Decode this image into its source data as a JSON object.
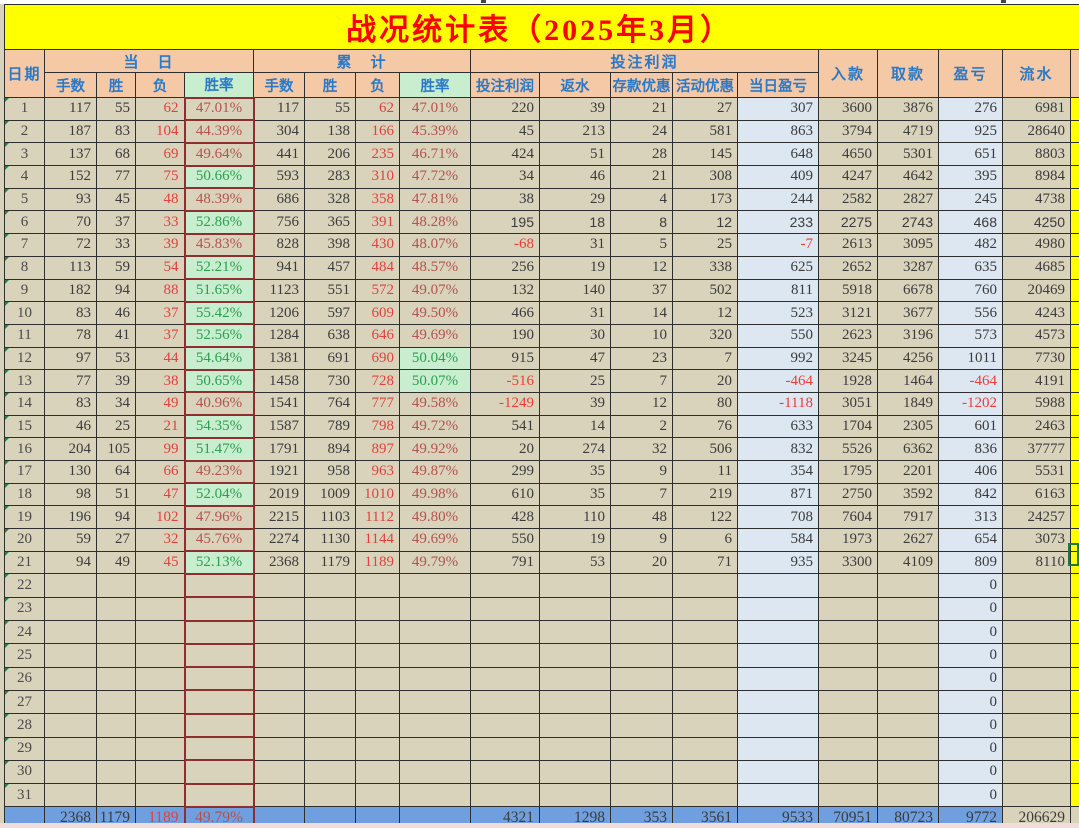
{
  "title": "战况统计表（2025年3月）",
  "colors": {
    "title_bg": "#FFFF00",
    "title_text": "#FF0000",
    "header_bg": "#F6C9A6",
    "header_text": "#2A79C9",
    "rate_header_bg": "#C8EECF",
    "cell_bg": "#D9D3BC",
    "blue_col_bg": "#DCE7F2",
    "good_bg": "#C8EECF",
    "good_text": "#2D9E4F",
    "bad_text": "#B2534E",
    "loss_text": "#E2413D",
    "neg_text": "#EF3B35",
    "num_text": "#3B3B3B",
    "total_bg": "#6F9FDF",
    "side_strip_bg": "#FFFF00",
    "bottom_strip_bg": "#F2DCDB",
    "grid_line": "#2E2E2E",
    "rate_border": "#8E2F2F",
    "triangle": "#1E8C3A",
    "selection": "#1A7A3C"
  },
  "header": {
    "date": "日期",
    "groups": [
      "当　日",
      "累　计",
      "投注利润"
    ],
    "sub": [
      "手数",
      "胜",
      "负",
      "胜率",
      "手数",
      "胜",
      "负",
      "胜率",
      "投注利润",
      "返水",
      "存款优惠",
      "活动优惠",
      "当日盈亏"
    ],
    "singles": [
      "入款",
      "取款",
      "盈亏",
      "流水"
    ]
  },
  "rows": [
    {
      "day": "1",
      "c": [
        "117",
        "55",
        "62",
        "47.01%",
        "117",
        "55",
        "62",
        "47.01%",
        "220",
        "39",
        "21",
        "27",
        "307",
        "3600",
        "3876",
        "276",
        "6981"
      ]
    },
    {
      "day": "2",
      "c": [
        "187",
        "83",
        "104",
        "44.39%",
        "304",
        "138",
        "166",
        "45.39%",
        "45",
        "213",
        "24",
        "581",
        "863",
        "3794",
        "4719",
        "925",
        "28640"
      ]
    },
    {
      "day": "3",
      "c": [
        "137",
        "68",
        "69",
        "49.64%",
        "441",
        "206",
        "235",
        "46.71%",
        "424",
        "51",
        "28",
        "145",
        "648",
        "4650",
        "5301",
        "651",
        "8803"
      ]
    },
    {
      "day": "4",
      "c": [
        "152",
        "77",
        "75",
        "50.66%",
        "593",
        "283",
        "310",
        "47.72%",
        "34",
        "46",
        "21",
        "308",
        "409",
        "4247",
        "4642",
        "395",
        "8984"
      ]
    },
    {
      "day": "5",
      "c": [
        "93",
        "45",
        "48",
        "48.39%",
        "686",
        "328",
        "358",
        "47.81%",
        "38",
        "29",
        "4",
        "173",
        "244",
        "2582",
        "2827",
        "245",
        "4738"
      ]
    },
    {
      "day": "6",
      "plain_font": true,
      "c": [
        "70",
        "37",
        "33",
        "52.86%",
        "756",
        "365",
        "391",
        "48.28%",
        "195",
        "18",
        "8",
        "12",
        "233",
        "2275",
        "2743",
        "468",
        "4250"
      ]
    },
    {
      "day": "7",
      "c": [
        "72",
        "33",
        "39",
        "45.83%",
        "828",
        "398",
        "430",
        "48.07%",
        "-68",
        "31",
        "5",
        "25",
        "-7",
        "2613",
        "3095",
        "482",
        "4980"
      ]
    },
    {
      "day": "8",
      "c": [
        "113",
        "59",
        "54",
        "52.21%",
        "941",
        "457",
        "484",
        "48.57%",
        "256",
        "19",
        "12",
        "338",
        "625",
        "2652",
        "3287",
        "635",
        "4685"
      ]
    },
    {
      "day": "9",
      "c": [
        "182",
        "94",
        "88",
        "51.65%",
        "1123",
        "551",
        "572",
        "49.07%",
        "132",
        "140",
        "37",
        "502",
        "811",
        "5918",
        "6678",
        "760",
        "20469"
      ]
    },
    {
      "day": "10",
      "c": [
        "83",
        "46",
        "37",
        "55.42%",
        "1206",
        "597",
        "609",
        "49.50%",
        "466",
        "31",
        "14",
        "12",
        "523",
        "3121",
        "3677",
        "556",
        "4243"
      ]
    },
    {
      "day": "11",
      "c": [
        "78",
        "41",
        "37",
        "52.56%",
        "1284",
        "638",
        "646",
        "49.69%",
        "190",
        "30",
        "10",
        "320",
        "550",
        "2623",
        "3196",
        "573",
        "4573"
      ]
    },
    {
      "day": "12",
      "c": [
        "97",
        "53",
        "44",
        "54.64%",
        "1381",
        "691",
        "690",
        "50.04%",
        "915",
        "47",
        "23",
        "7",
        "992",
        "3245",
        "4256",
        "1011",
        "7730"
      ]
    },
    {
      "day": "13",
      "c": [
        "77",
        "39",
        "38",
        "50.65%",
        "1458",
        "730",
        "728",
        "50.07%",
        "-516",
        "25",
        "7",
        "20",
        "-464",
        "1928",
        "1464",
        "-464",
        "4191"
      ]
    },
    {
      "day": "14",
      "c": [
        "83",
        "34",
        "49",
        "40.96%",
        "1541",
        "764",
        "777",
        "49.58%",
        "-1249",
        "39",
        "12",
        "80",
        "-1118",
        "3051",
        "1849",
        "-1202",
        "5988"
      ]
    },
    {
      "day": "15",
      "c": [
        "46",
        "25",
        "21",
        "54.35%",
        "1587",
        "789",
        "798",
        "49.72%",
        "541",
        "14",
        "2",
        "76",
        "633",
        "1704",
        "2305",
        "601",
        "2463"
      ]
    },
    {
      "day": "16",
      "c": [
        "204",
        "105",
        "99",
        "51.47%",
        "1791",
        "894",
        "897",
        "49.92%",
        "20",
        "274",
        "32",
        "506",
        "832",
        "5526",
        "6362",
        "836",
        "37777"
      ]
    },
    {
      "day": "17",
      "c": [
        "130",
        "64",
        "66",
        "49.23%",
        "1921",
        "958",
        "963",
        "49.87%",
        "299",
        "35",
        "9",
        "11",
        "354",
        "1795",
        "2201",
        "406",
        "5531"
      ]
    },
    {
      "day": "18",
      "c": [
        "98",
        "51",
        "47",
        "52.04%",
        "2019",
        "1009",
        "1010",
        "49.98%",
        "610",
        "35",
        "7",
        "219",
        "871",
        "2750",
        "3592",
        "842",
        "6163"
      ]
    },
    {
      "day": "19",
      "c": [
        "196",
        "94",
        "102",
        "47.96%",
        "2215",
        "1103",
        "1112",
        "49.80%",
        "428",
        "110",
        "48",
        "122",
        "708",
        "7604",
        "7917",
        "313",
        "24257"
      ]
    },
    {
      "day": "20",
      "c": [
        "59",
        "27",
        "32",
        "45.76%",
        "2274",
        "1130",
        "1144",
        "49.69%",
        "550",
        "19",
        "9",
        "6",
        "584",
        "1973",
        "2627",
        "654",
        "3073"
      ]
    },
    {
      "day": "21",
      "c": [
        "94",
        "49",
        "45",
        "52.13%",
        "2368",
        "1179",
        "1189",
        "49.79%",
        "791",
        "53",
        "20",
        "71",
        "935",
        "3300",
        "4109",
        "809",
        "8110"
      ]
    },
    {
      "day": "22",
      "c": [
        "",
        "",
        "",
        "",
        "",
        "",
        "",
        "",
        "",
        "",
        "",
        "",
        "",
        "",
        "",
        "0",
        ""
      ]
    },
    {
      "day": "23",
      "c": [
        "",
        "",
        "",
        "",
        "",
        "",
        "",
        "",
        "",
        "",
        "",
        "",
        "",
        "",
        "",
        "0",
        ""
      ]
    },
    {
      "day": "24",
      "c": [
        "",
        "",
        "",
        "",
        "",
        "",
        "",
        "",
        "",
        "",
        "",
        "",
        "",
        "",
        "",
        "0",
        ""
      ]
    },
    {
      "day": "25",
      "c": [
        "",
        "",
        "",
        "",
        "",
        "",
        "",
        "",
        "",
        "",
        "",
        "",
        "",
        "",
        "",
        "0",
        ""
      ]
    },
    {
      "day": "26",
      "c": [
        "",
        "",
        "",
        "",
        "",
        "",
        "",
        "",
        "",
        "",
        "",
        "",
        "",
        "",
        "",
        "0",
        ""
      ]
    },
    {
      "day": "27",
      "c": [
        "",
        "",
        "",
        "",
        "",
        "",
        "",
        "",
        "",
        "",
        "",
        "",
        "",
        "",
        "",
        "0",
        ""
      ]
    },
    {
      "day": "28",
      "c": [
        "",
        "",
        "",
        "",
        "",
        "",
        "",
        "",
        "",
        "",
        "",
        "",
        "",
        "",
        "",
        "0",
        ""
      ]
    },
    {
      "day": "29",
      "c": [
        "",
        "",
        "",
        "",
        "",
        "",
        "",
        "",
        "",
        "",
        "",
        "",
        "",
        "",
        "",
        "0",
        ""
      ]
    },
    {
      "day": "30",
      "c": [
        "",
        "",
        "",
        "",
        "",
        "",
        "",
        "",
        "",
        "",
        "",
        "",
        "",
        "",
        "",
        "0",
        ""
      ]
    },
    {
      "day": "31",
      "c": [
        "",
        "",
        "",
        "",
        "",
        "",
        "",
        "",
        "",
        "",
        "",
        "",
        "",
        "",
        "",
        "0",
        ""
      ]
    }
  ],
  "total": {
    "day": "",
    "c": [
      "2368",
      "1179",
      "1189",
      "49.79%",
      "",
      "",
      "",
      "",
      "4321",
      "1298",
      "353",
      "3561",
      "9533",
      "70951",
      "80723",
      "9772",
      "206629"
    ]
  }
}
